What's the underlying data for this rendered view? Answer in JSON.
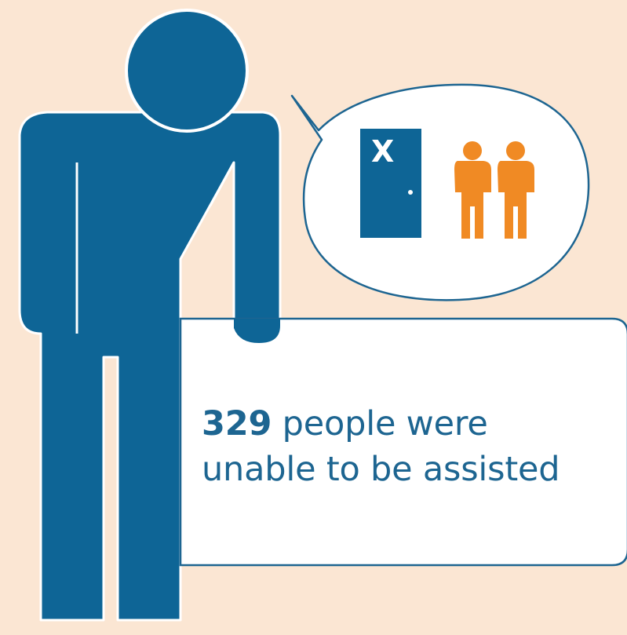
{
  "statement": {
    "count": "329",
    "line1_rest": " people were",
    "line2": "unable to be assisted"
  },
  "door": {
    "mark": "X"
  },
  "colors": {
    "background": "#fbe6d3",
    "figure_blue": "#0e6596",
    "bubble_outline": "#1d6591",
    "people_orange": "#f08a24",
    "text_blue": "#1d6591"
  },
  "icons": [
    "person-figure-icon",
    "closed-door-icon",
    "two-people-icon",
    "speech-bubble"
  ]
}
